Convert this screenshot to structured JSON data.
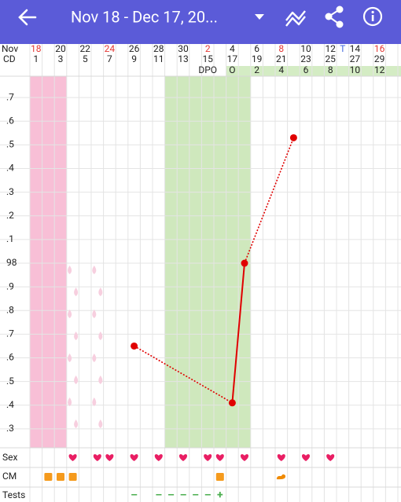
{
  "header": {
    "title": "Nov 18 - Dec 17, 20..."
  },
  "month_label": "Nov",
  "cd_label": "CD",
  "dates": [
    {
      "label": "18",
      "red": true
    },
    {
      "label": "20",
      "red": false
    },
    {
      "label": "22",
      "red": false
    },
    {
      "label": "24",
      "red": true
    },
    {
      "label": "26",
      "red": false
    },
    {
      "label": "28",
      "red": false
    },
    {
      "label": "30",
      "red": false
    },
    {
      "label": "2",
      "red": true
    },
    {
      "label": "4",
      "red": false
    },
    {
      "label": "6",
      "red": false
    },
    {
      "label": "8",
      "red": true
    },
    {
      "label": "10",
      "red": false
    },
    {
      "label": "12",
      "red": false
    },
    {
      "label": "14",
      "red": false
    },
    {
      "label": "16",
      "red": true
    }
  ],
  "cycle_days": [
    1,
    3,
    5,
    7,
    9,
    11,
    13,
    15,
    17,
    19,
    21,
    23,
    25,
    27,
    29
  ],
  "today": {
    "label": "T",
    "cd": 26
  },
  "dpo": {
    "label": "DPO",
    "label_cd": 15,
    "start_cd": 17,
    "items": [
      {
        "cd": 17,
        "label": "O"
      },
      {
        "cd": 19,
        "label": "2"
      },
      {
        "cd": 21,
        "label": "4"
      },
      {
        "cd": 23,
        "label": "6"
      },
      {
        "cd": 25,
        "label": "8"
      },
      {
        "cd": 27,
        "label": "10"
      },
      {
        "cd": 29,
        "label": "12"
      }
    ]
  },
  "period_days": [
    1,
    2,
    3
  ],
  "spotting_days": [
    4,
    6
  ],
  "fertile_window": [
    12,
    18
  ],
  "chart_data": {
    "type": "line",
    "x": [
      9,
      17,
      18,
      22
    ],
    "values": [
      97.65,
      97.41,
      98.0,
      98.53
    ],
    "segment_styles": [
      "dotted",
      "solid",
      "dotted"
    ],
    "color": "#e00000",
    "xlim": [
      0.5,
      30.5
    ],
    "ylim": [
      97.22,
      98.79
    ],
    "yticks": [
      {
        "value": 98.7,
        "label": ".7"
      },
      {
        "value": 98.6,
        "label": ".6"
      },
      {
        "value": 98.5,
        "label": ".5"
      },
      {
        "value": 98.4,
        "label": ".4"
      },
      {
        "value": 98.3,
        "label": ".3"
      },
      {
        "value": 98.2,
        "label": ".2"
      },
      {
        "value": 98.1,
        "label": ".1"
      },
      98,
      {
        "value": 97.9,
        "label": ".9"
      },
      {
        "value": 97.8,
        "label": ".8"
      },
      {
        "value": 97.7,
        "label": ".7"
      },
      {
        "value": 97.6,
        "label": ".6"
      },
      {
        "value": 97.5,
        "label": ".5"
      },
      {
        "value": 97.4,
        "label": ".4"
      },
      {
        "value": 97.3,
        "label": ".3"
      }
    ],
    "grid": true
  },
  "rows": [
    {
      "label": "Sex",
      "icon": "heart",
      "days": [
        4,
        6,
        7,
        9,
        11,
        13,
        15,
        16,
        18,
        21,
        23,
        25
      ]
    },
    {
      "label": "CM",
      "icon": "square",
      "days": [
        2,
        3,
        4,
        16,
        21
      ],
      "icons": [
        "square",
        "square",
        "square",
        "square",
        "blob"
      ]
    },
    {
      "label": "Tests",
      "icon": "text",
      "days": [
        9,
        11,
        12,
        13,
        14,
        15,
        16
      ],
      "results": [
        "–",
        "–",
        "–",
        "–",
        "–",
        "–",
        "+"
      ]
    }
  ]
}
